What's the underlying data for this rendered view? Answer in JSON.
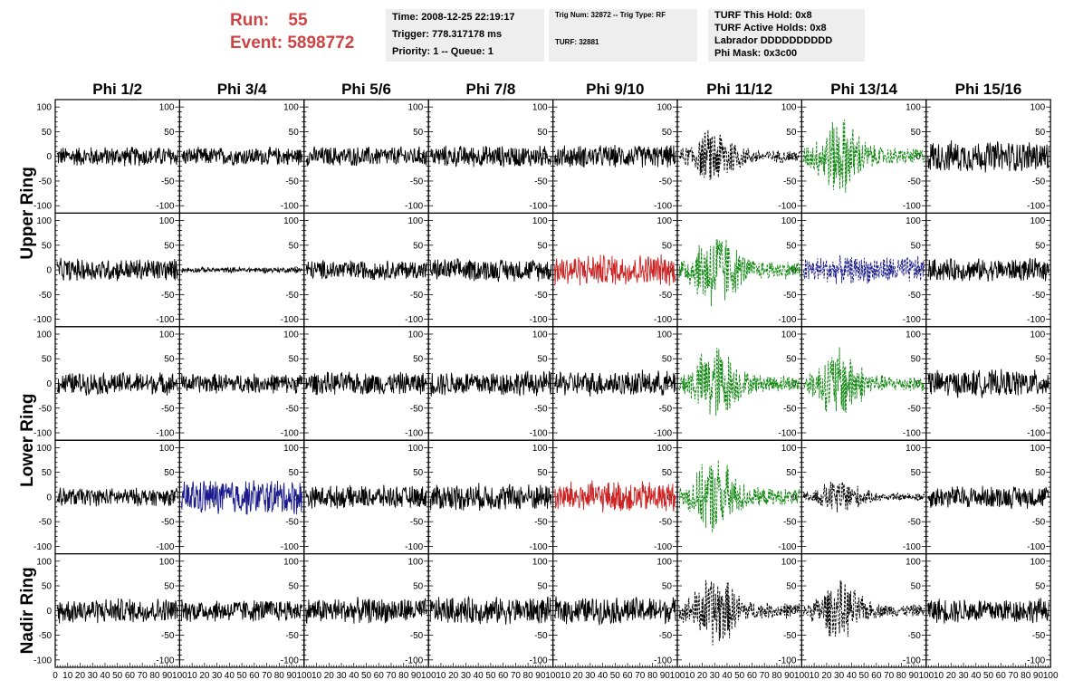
{
  "header": {
    "run_label": "Run:",
    "run_value": "55",
    "event_label": "Event:",
    "event_value": "5898772",
    "time": "Time: 2008-12-25 22:19:17",
    "trigger": "Trigger: 778.317178 ms",
    "priority": "Priority: 1 -- Queue: 1",
    "trig_num": "Trig Num: 32872 -- Trig Type: RF",
    "turf": "TURF: 32881",
    "turf_this_hold": "TURF This Hold: 0x8",
    "turf_active_holds": "TURF Active Holds: 0x8",
    "labrador": "Labrador DDDDDDDDDD",
    "phi_mask": "Phi Mask: 0x3c00"
  },
  "columns": [
    "Phi 1/2",
    "Phi 3/4",
    "Phi 5/6",
    "Phi 7/8",
    "Phi 9/10",
    "Phi 11/12",
    "Phi 13/14",
    "Phi 15/16"
  ],
  "ring_labels": [
    {
      "label": "Upper Ring",
      "rows": [
        0,
        1
      ]
    },
    {
      "label": "Lower Ring",
      "rows": [
        2,
        3
      ]
    },
    {
      "label": "Nadir Ring",
      "rows": [
        4
      ]
    }
  ],
  "colors": {
    "black": "#000000",
    "red": "#cc2222",
    "blue": "#1a1a8c",
    "green": "#118811",
    "title_red": "#cc4444",
    "box_bg": "#eeeeee"
  },
  "chart_data": {
    "type": "line",
    "xlim": [
      0,
      100
    ],
    "ylim": [
      -115,
      115
    ],
    "y_ticks_left": [
      "100",
      "50",
      "0",
      "-50",
      "-100"
    ],
    "y_ticks_right": [
      "100",
      "50",
      "0",
      "-50",
      "-100"
    ],
    "x_tick_labels": [
      "0",
      "10",
      "20",
      "30",
      "40",
      "50",
      "60",
      "70",
      "80",
      "90",
      "100"
    ],
    "panels": [
      [
        {
          "color": "black",
          "amp": 22,
          "style": "solid"
        },
        {
          "color": "black",
          "amp": 20,
          "style": "solid"
        },
        {
          "color": "black",
          "amp": 22,
          "style": "solid"
        },
        {
          "color": "black",
          "amp": 24,
          "style": "solid"
        },
        {
          "color": "black",
          "amp": 25,
          "style": "solid"
        },
        {
          "color": "black",
          "amp": 55,
          "style": "dashed",
          "burst": true
        },
        {
          "color": "green",
          "amp": 75,
          "style": "dashed",
          "burst": true
        },
        {
          "color": "black",
          "amp": 35,
          "style": "solid"
        }
      ],
      [
        {
          "color": "black",
          "amp": 25,
          "style": "solid"
        },
        {
          "color": "black",
          "amp": 6,
          "style": "solid"
        },
        {
          "color": "black",
          "amp": 22,
          "style": "solid"
        },
        {
          "color": "black",
          "amp": 25,
          "style": "solid"
        },
        {
          "color": "red",
          "amp": 35,
          "style": "solid"
        },
        {
          "color": "green",
          "amp": 80,
          "style": "dashed",
          "burst": true
        },
        {
          "color": "blue",
          "amp": 30,
          "style": "dashed"
        },
        {
          "color": "black",
          "amp": 25,
          "style": "solid"
        }
      ],
      [
        {
          "color": "black",
          "amp": 25,
          "style": "solid"
        },
        {
          "color": "black",
          "amp": 22,
          "style": "solid"
        },
        {
          "color": "black",
          "amp": 25,
          "style": "solid"
        },
        {
          "color": "black",
          "amp": 28,
          "style": "solid"
        },
        {
          "color": "black",
          "amp": 28,
          "style": "solid"
        },
        {
          "color": "green",
          "amp": 75,
          "style": "dashed",
          "burst": true
        },
        {
          "color": "green",
          "amp": 70,
          "style": "dashed",
          "burst": true
        },
        {
          "color": "black",
          "amp": 30,
          "style": "solid"
        }
      ],
      [
        {
          "color": "black",
          "amp": 20,
          "style": "solid"
        },
        {
          "color": "blue",
          "amp": 40,
          "style": "solid"
        },
        {
          "color": "black",
          "amp": 25,
          "style": "solid"
        },
        {
          "color": "black",
          "amp": 30,
          "style": "solid"
        },
        {
          "color": "red",
          "amp": 35,
          "style": "solid"
        },
        {
          "color": "green",
          "amp": 75,
          "style": "dashed",
          "burst": true
        },
        {
          "color": "black",
          "amp": 35,
          "style": "dashed",
          "burst": true
        },
        {
          "color": "black",
          "amp": 25,
          "style": "solid"
        }
      ],
      [
        {
          "color": "black",
          "amp": 28,
          "style": "solid"
        },
        {
          "color": "black",
          "amp": 25,
          "style": "solid"
        },
        {
          "color": "black",
          "amp": 28,
          "style": "solid"
        },
        {
          "color": "black",
          "amp": 30,
          "style": "solid"
        },
        {
          "color": "black",
          "amp": 30,
          "style": "solid"
        },
        {
          "color": "black",
          "amp": 70,
          "style": "dashed",
          "burst": true
        },
        {
          "color": "black",
          "amp": 55,
          "style": "dashed",
          "burst": true
        },
        {
          "color": "black",
          "amp": 28,
          "style": "solid"
        }
      ]
    ]
  }
}
